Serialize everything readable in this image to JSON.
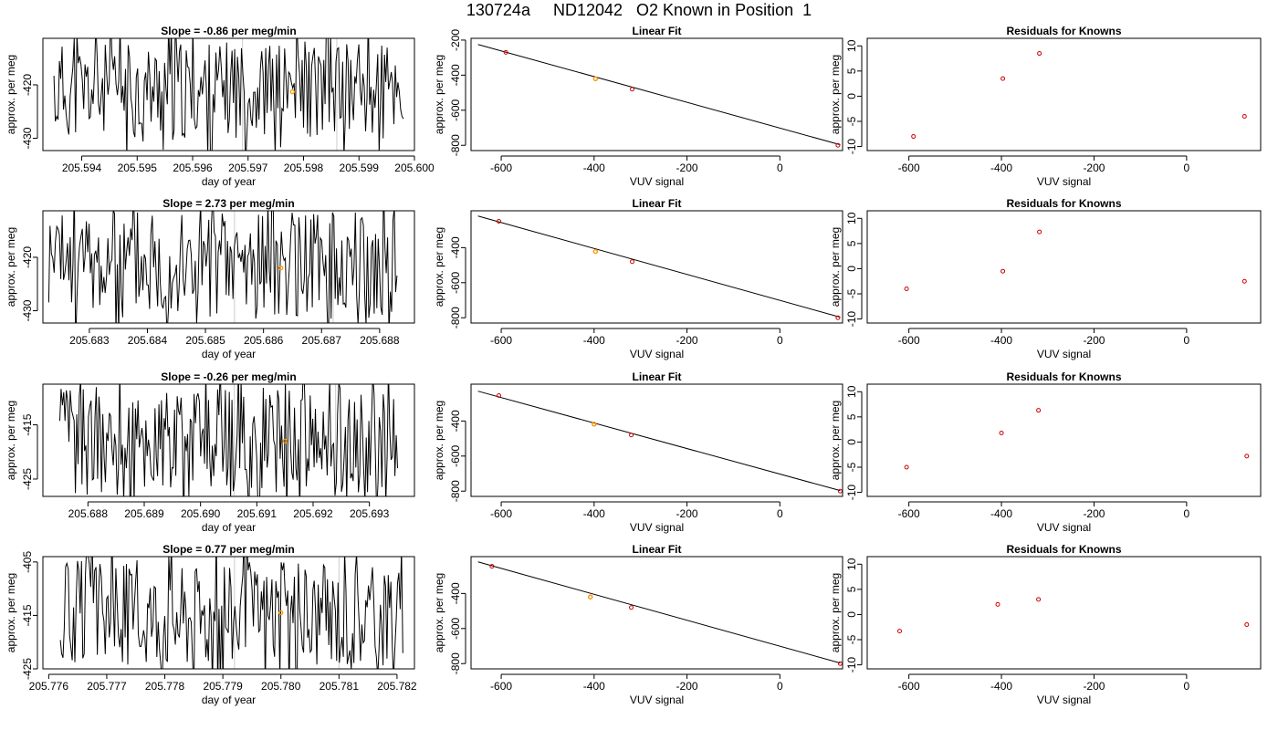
{
  "title": "130724a     ND12042   O2 Known in Position  1",
  "colors": {
    "axis": "#000000",
    "trace": "#000000",
    "fit_line": "#000000",
    "marker": "#cc0000",
    "highlight": "#ff9900",
    "window_line": "#cccccc"
  },
  "chart_data": [
    {
      "id": "slope-1",
      "type": "line",
      "title": "Slope =  -0.86  per meg/min",
      "xlabel": "day of year",
      "ylabel": "approx. per meg",
      "xlim": [
        205.5933,
        205.6
      ],
      "ylim": [
        -432.3,
        -411.3
      ],
      "xticks": [
        "205.594",
        "205.595",
        "205.596",
        "205.597",
        "205.598",
        "205.599",
        "205.600"
      ],
      "xtick_values": [
        205.594,
        205.595,
        205.596,
        205.597,
        205.598,
        205.599,
        205.6
      ],
      "yticks": [
        "-420",
        "-430"
      ],
      "ytick_values": [
        -420,
        -430
      ],
      "window_lines": [
        205.5969,
        205.5986
      ],
      "highlight": {
        "x": 205.5978,
        "y": -421.3
      },
      "trace_start": 205.5935,
      "trace_end": 205.5998,
      "trace_center": -421,
      "trace_amp": 9,
      "seed": 11
    },
    {
      "id": "fit-1",
      "type": "scatter",
      "title": "Linear Fit",
      "xlabel": "VUV signal",
      "ylabel": "approx. per meg",
      "xlim": [
        -665,
        135
      ],
      "ylim": [
        -830,
        -190
      ],
      "xticks": [
        "-600",
        "-400",
        "-200",
        "0"
      ],
      "xtick_values": [
        -600,
        -400,
        -200,
        0
      ],
      "yticks": [
        "-200",
        "-400",
        "-600",
        "-800"
      ],
      "ytick_values": [
        -200,
        -400,
        -600,
        -800
      ],
      "line": [
        [
          -650,
          -225
        ],
        [
          130,
          -797
        ]
      ],
      "points": [
        [
          -590,
          -270
        ],
        [
          -397,
          -421
        ],
        [
          -318,
          -480
        ],
        [
          125,
          -800
        ]
      ],
      "highlight": {
        "x": -397,
        "y": -421
      }
    },
    {
      "id": "resid-1",
      "type": "scatter",
      "title": "Residuals for Knowns",
      "xlabel": "VUV signal",
      "ylabel": "approx. per meg",
      "xlim": [
        -690,
        160
      ],
      "ylim": [
        -10.8,
        11.5
      ],
      "xticks": [
        "-600",
        "-400",
        "-200",
        "0"
      ],
      "xtick_values": [
        -600,
        -400,
        -200,
        0
      ],
      "yticks": [
        "-10",
        "-5",
        "0",
        "5",
        "10"
      ],
      "ytick_values": [
        -10,
        -5,
        0,
        5,
        10
      ],
      "points": [
        [
          -590,
          -8
        ],
        [
          -397,
          3.5
        ],
        [
          -318,
          8.5
        ],
        [
          125,
          -4
        ]
      ]
    },
    {
      "id": "slope-2",
      "type": "line",
      "title": "Slope =  2.73  per meg/min",
      "xlabel": "day of year",
      "ylabel": "approx. per meg",
      "xlim": [
        205.6822,
        205.6886
      ],
      "ylim": [
        -432.3,
        -411.3
      ],
      "xticks": [
        "205.683",
        "205.684",
        "205.685",
        "205.686",
        "205.687",
        "205.688"
      ],
      "xtick_values": [
        205.683,
        205.684,
        205.685,
        205.686,
        205.687,
        205.688
      ],
      "yticks": [
        "-420",
        "-430"
      ],
      "ytick_values": [
        -420,
        -430
      ],
      "window_lines": [
        205.6855,
        205.6872
      ],
      "highlight": {
        "x": 205.6863,
        "y": -422.0
      },
      "trace_start": 205.6823,
      "trace_end": 205.6883,
      "trace_center": -421,
      "trace_amp": 10,
      "seed": 23
    },
    {
      "id": "fit-2",
      "type": "scatter",
      "title": "Linear Fit",
      "xlabel": "VUV signal",
      "ylabel": "approx. per meg",
      "xlim": [
        -665,
        135
      ],
      "ylim": [
        -830,
        -190
      ],
      "xticks": [
        "-600",
        "-400",
        "-200",
        "0"
      ],
      "xtick_values": [
        -600,
        -400,
        -200,
        0
      ],
      "yticks": [
        "-400",
        "-600",
        "-800"
      ],
      "ytick_values": [
        -400,
        -600,
        -800
      ],
      "line": [
        [
          -650,
          -220
        ],
        [
          130,
          -797
        ]
      ],
      "points": [
        [
          -605,
          -250
        ],
        [
          -397,
          -422
        ],
        [
          -318,
          -480
        ],
        [
          125,
          -800
        ]
      ],
      "highlight": {
        "x": -397,
        "y": -422
      }
    },
    {
      "id": "resid-2",
      "type": "scatter",
      "title": "Residuals for Knowns",
      "xlabel": "VUV signal",
      "ylabel": "approx. per meg",
      "xlim": [
        -690,
        160
      ],
      "ylim": [
        -10.8,
        11.5
      ],
      "xticks": [
        "-600",
        "-400",
        "-200",
        "0"
      ],
      "xtick_values": [
        -600,
        -400,
        -200,
        0
      ],
      "yticks": [
        "-10",
        "-5",
        "0",
        "5",
        "10"
      ],
      "ytick_values": [
        -10,
        -5,
        0,
        5,
        10
      ],
      "points": [
        [
          -605,
          -4
        ],
        [
          -397,
          -0.5
        ],
        [
          -318,
          7.3
        ],
        [
          125,
          -2.5
        ]
      ]
    },
    {
      "id": "slope-3",
      "type": "line",
      "title": "Slope =  -0.26  per meg/min",
      "xlabel": "day of year",
      "ylabel": "approx. per meg",
      "xlim": [
        205.6872,
        205.6938
      ],
      "ylim": [
        -428.2,
        -407.5
      ],
      "xticks": [
        "205.688",
        "205.689",
        "205.690",
        "205.691",
        "205.692",
        "205.693"
      ],
      "xtick_values": [
        205.688,
        205.689,
        205.69,
        205.691,
        205.692,
        205.693
      ],
      "yticks": [
        "-415",
        "-425"
      ],
      "ytick_values": [
        -415,
        -425
      ],
      "window_lines": [
        205.6906,
        205.6924
      ],
      "highlight": {
        "x": 205.6915,
        "y": -418.0
      },
      "trace_start": 205.6875,
      "trace_end": 205.6935,
      "trace_center": -418,
      "trace_amp": 10,
      "seed": 37
    },
    {
      "id": "fit-3",
      "type": "scatter",
      "title": "Linear Fit",
      "xlabel": "VUV signal",
      "ylabel": "approx. per meg",
      "xlim": [
        -665,
        135
      ],
      "ylim": [
        -830,
        -190
      ],
      "xticks": [
        "-600",
        "-400",
        "-200",
        "0"
      ],
      "xtick_values": [
        -600,
        -400,
        -200,
        0
      ],
      "yticks": [
        "-400",
        "-600",
        "-800"
      ],
      "ytick_values": [
        -400,
        -600,
        -800
      ],
      "line": [
        [
          -650,
          -230
        ],
        [
          130,
          -797
        ]
      ],
      "points": [
        [
          -605,
          -255
        ],
        [
          -400,
          -418
        ],
        [
          -320,
          -480
        ],
        [
          130,
          -800
        ]
      ],
      "highlight": {
        "x": -400,
        "y": -418
      }
    },
    {
      "id": "resid-3",
      "type": "scatter",
      "title": "Residuals for Knowns",
      "xlabel": "VUV signal",
      "ylabel": "approx. per meg",
      "xlim": [
        -690,
        160
      ],
      "ylim": [
        -10.8,
        11.5
      ],
      "xticks": [
        "-600",
        "-400",
        "-200",
        "0"
      ],
      "xtick_values": [
        -600,
        -400,
        -200,
        0
      ],
      "yticks": [
        "-10",
        "-5",
        "0",
        "5",
        "10"
      ],
      "ytick_values": [
        -10,
        -5,
        0,
        5,
        10
      ],
      "points": [
        [
          -605,
          -5
        ],
        [
          -400,
          1.8
        ],
        [
          -320,
          6.3
        ],
        [
          130,
          -2.8
        ]
      ]
    },
    {
      "id": "slope-4",
      "type": "line",
      "title": "Slope =  0.77  per meg/min",
      "xlabel": "day of year",
      "ylabel": "approx. per meg",
      "xlim": [
        205.7759,
        205.7823
      ],
      "ylim": [
        -425,
        -404
      ],
      "xticks": [
        "205.776",
        "205.777",
        "205.778",
        "205.779",
        "205.780",
        "205.781",
        "205.782"
      ],
      "xtick_values": [
        205.776,
        205.777,
        205.778,
        205.779,
        205.78,
        205.781,
        205.782
      ],
      "yticks": [
        "-405",
        "-415",
        "-425"
      ],
      "ytick_values": [
        -405,
        -415,
        -425
      ],
      "window_lines": [
        205.7792,
        205.781
      ],
      "highlight": {
        "x": 205.78,
        "y": -414.5
      },
      "trace_start": 205.7762,
      "trace_end": 205.7821,
      "trace_center": -414.5,
      "trace_amp": 10,
      "seed": 51
    },
    {
      "id": "fit-4",
      "type": "scatter",
      "title": "Linear Fit",
      "xlabel": "VUV signal",
      "ylabel": "approx. per meg",
      "xlim": [
        -665,
        135
      ],
      "ylim": [
        -830,
        -190
      ],
      "xticks": [
        "-600",
        "-400",
        "-200",
        "0"
      ],
      "xtick_values": [
        -600,
        -400,
        -200,
        0
      ],
      "yticks": [
        "-400",
        "-600",
        "-800"
      ],
      "ytick_values": [
        -400,
        -600,
        -800
      ],
      "line": [
        [
          -650,
          -220
        ],
        [
          130,
          -797
        ]
      ],
      "points": [
        [
          -620,
          -245
        ],
        [
          -408,
          -420
        ],
        [
          -320,
          -480
        ],
        [
          130,
          -800
        ]
      ],
      "highlight": {
        "x": -408,
        "y": -420
      }
    },
    {
      "id": "resid-4",
      "type": "scatter",
      "title": "Residuals for Knowns",
      "xlabel": "VUV signal",
      "ylabel": "approx. per meg",
      "xlim": [
        -690,
        160
      ],
      "ylim": [
        -10.8,
        11.5
      ],
      "xticks": [
        "-600",
        "-400",
        "-200",
        "0"
      ],
      "xtick_values": [
        -600,
        -400,
        -200,
        0
      ],
      "yticks": [
        "-10",
        "-5",
        "0",
        "5",
        "10"
      ],
      "ytick_values": [
        -10,
        -5,
        0,
        5,
        10
      ],
      "points": [
        [
          -620,
          -3.3
        ],
        [
          -408,
          2
        ],
        [
          -320,
          3
        ],
        [
          130,
          -2
        ]
      ]
    }
  ]
}
